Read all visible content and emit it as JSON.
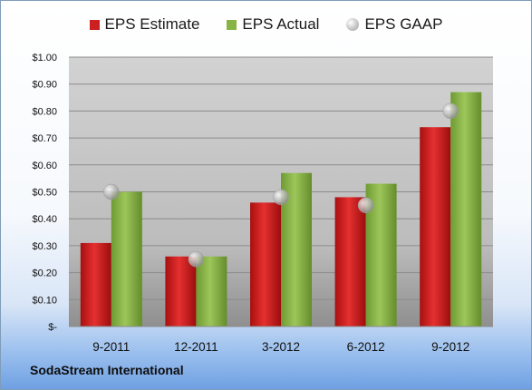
{
  "company": "SodaStream International",
  "legend": {
    "estimate": "EPS Estimate",
    "actual": "EPS Actual",
    "gaap": "EPS GAAP"
  },
  "colors": {
    "estimate": "#cc1f1f",
    "actual": "#88b445",
    "gaap": "#b5b5b5",
    "plot_bg": "#c0c0c0"
  },
  "chart_data": {
    "type": "bar",
    "categories": [
      "9-2011",
      "12-2011",
      "3-2012",
      "6-2012",
      "9-2012"
    ],
    "series": [
      {
        "name": "EPS Estimate",
        "values": [
          0.31,
          0.26,
          0.46,
          0.48,
          0.74
        ]
      },
      {
        "name": "EPS Actual",
        "values": [
          0.5,
          0.26,
          0.57,
          0.53,
          0.87
        ]
      },
      {
        "name": "EPS GAAP",
        "type": "scatter",
        "values": [
          0.5,
          0.25,
          0.48,
          0.45,
          0.8
        ]
      }
    ],
    "ylim": [
      0,
      1.0
    ],
    "yticks": [
      0,
      0.1,
      0.2,
      0.3,
      0.4,
      0.5,
      0.6,
      0.7,
      0.8,
      0.9,
      1.0
    ],
    "ytick_labels": [
      "$-",
      "$0.10",
      "$0.20",
      "$0.30",
      "$0.40",
      "$0.50",
      "$0.60",
      "$0.70",
      "$0.80",
      "$0.90",
      "$1.00"
    ],
    "legend_position": "top",
    "grid": true
  }
}
